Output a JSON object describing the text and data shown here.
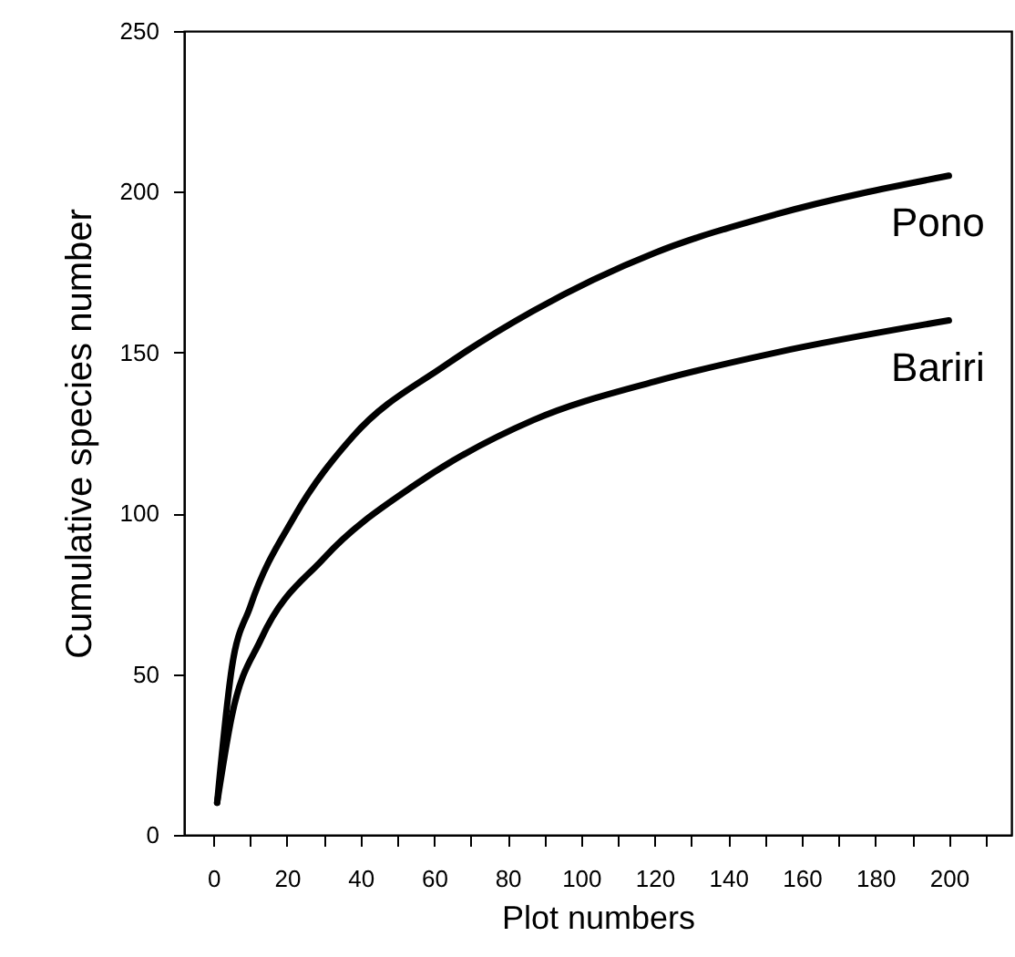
{
  "chart_data": {
    "type": "line",
    "xlabel": "Plot numbers",
    "ylabel": "Cumulative species number",
    "xlim": [
      -8,
      217
    ],
    "ylim": [
      0,
      250
    ],
    "xticks": [
      0,
      {
        "value": 10,
        "label": null
      },
      20,
      {
        "value": 30,
        "label": null
      },
      40,
      {
        "value": 50,
        "label": null
      },
      60,
      {
        "value": 70,
        "label": null
      },
      80,
      {
        "value": 90,
        "label": null
      },
      100,
      {
        "value": 110,
        "label": null
      },
      120,
      {
        "value": 130,
        "label": null
      },
      140,
      {
        "value": 150,
        "label": null
      },
      160,
      {
        "value": 170,
        "label": null
      },
      180,
      {
        "value": 190,
        "label": null
      },
      200,
      {
        "value": 210,
        "label": null
      }
    ],
    "yticks": [
      0,
      50,
      100,
      150,
      200,
      250
    ],
    "grid": false,
    "legend": false,
    "marker": "none",
    "line_style": "solid",
    "series": [
      {
        "name": "Pono",
        "color": "#000000",
        "x": [
          1,
          5,
          10,
          22,
          38,
          63,
          87,
          120,
          153,
          200
        ],
        "values": [
          10,
          52,
          71,
          99,
          124,
          146,
          163,
          181,
          193,
          205
        ]
      },
      {
        "name": "Bariri",
        "color": "#000000",
        "x": [
          1,
          5,
          13,
          30,
          55,
          87,
          120,
          153,
          200
        ],
        "values": [
          10,
          37,
          61,
          86,
          109,
          129,
          141,
          150,
          160
        ]
      }
    ]
  }
}
